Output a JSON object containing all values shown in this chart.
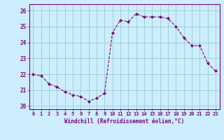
{
  "x": [
    0,
    1,
    2,
    3,
    4,
    5,
    6,
    7,
    8,
    9,
    10,
    11,
    12,
    13,
    14,
    15,
    16,
    17,
    18,
    19,
    20,
    21,
    22,
    23
  ],
  "y": [
    22.0,
    21.9,
    21.4,
    21.2,
    20.9,
    20.7,
    20.6,
    20.3,
    20.5,
    20.8,
    24.6,
    25.4,
    25.3,
    25.8,
    25.6,
    25.6,
    25.6,
    25.5,
    25.0,
    24.3,
    23.8,
    23.8,
    22.7,
    22.2
  ],
  "line_color": "#800080",
  "marker": "D",
  "marker_size": 2.0,
  "xlabel": "Windchill (Refroidissement éolien,°C)",
  "xlabel_color": "#800080",
  "ylabel_ticks": [
    20,
    21,
    22,
    23,
    24,
    25,
    26
  ],
  "xtick_labels": [
    "0",
    "1",
    "2",
    "3",
    "4",
    "5",
    "6",
    "7",
    "8",
    "9",
    "10",
    "11",
    "12",
    "13",
    "14",
    "15",
    "16",
    "17",
    "18",
    "19",
    "20",
    "21",
    "22",
    "23"
  ],
  "ylim": [
    19.8,
    26.4
  ],
  "xlim": [
    -0.5,
    23.5
  ],
  "bg_color": "#cceeff",
  "grid_color": "#99cccc",
  "spine_color": "#800080"
}
